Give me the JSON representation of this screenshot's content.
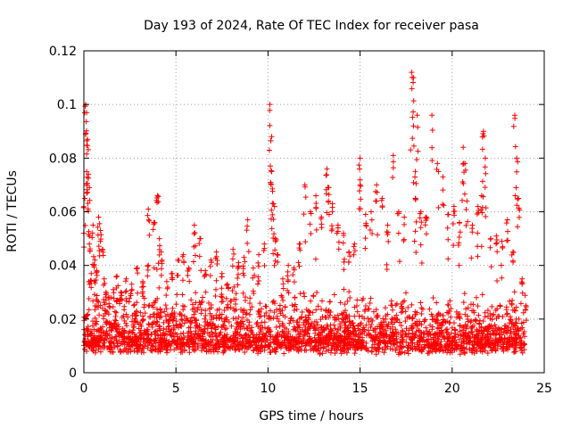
{
  "chart_data": {
    "type": "scatter",
    "title": "Day 193 of 2024, Rate Of TEC Index for receiver pasa",
    "xlabel": "GPS time / hours",
    "ylabel": "ROTI / TECUs",
    "xlim": [
      0,
      25
    ],
    "ylim": [
      0,
      0.12
    ],
    "xticks": [
      0,
      5,
      10,
      15,
      20,
      25
    ],
    "xtick_labels": [
      "0",
      "5",
      "10",
      "15",
      "20",
      "25"
    ],
    "yticks": [
      0,
      0.02,
      0.04,
      0.06,
      0.08,
      0.1,
      0.12
    ],
    "ytick_labels": [
      "0",
      "0.02",
      "0.04",
      "0.06",
      "0.08",
      "0.1",
      "0.12"
    ],
    "grid": true,
    "marker": "+",
    "point_color": "#ff0000",
    "series": [
      {
        "name": "ROTI",
        "x": [
          0.05,
          0.1,
          0.15,
          0.15,
          0.2,
          0.25,
          0.3,
          0.3,
          0.4,
          0.5,
          0.6,
          0.7,
          0.8,
          0.9,
          1.0,
          1.1,
          1.2,
          1.4,
          1.6,
          1.8,
          2.0,
          2.3,
          2.6,
          2.9,
          3.2,
          3.5,
          3.5,
          3.8,
          4.0,
          4.1,
          4.2,
          4.5,
          4.8,
          5.1,
          5.4,
          5.7,
          6.0,
          6.3,
          6.6,
          6.9,
          7.2,
          7.5,
          7.8,
          8.1,
          8.4,
          8.7,
          8.9,
          9.2,
          9.5,
          9.8,
          10.1,
          10.2,
          10.2,
          10.3,
          10.4,
          10.5,
          10.8,
          11.1,
          11.4,
          11.7,
          12.0,
          12.3,
          12.6,
          12.9,
          13.2,
          13.3,
          13.5,
          13.8,
          14.1,
          14.4,
          14.7,
          15.0,
          15.0,
          15.3,
          15.6,
          15.9,
          16.2,
          16.5,
          16.8,
          17.1,
          17.4,
          17.8,
          17.9,
          17.9,
          18.0,
          18.0,
          18.1,
          18.3,
          18.6,
          18.9,
          19.2,
          19.5,
          19.8,
          20.1,
          20.4,
          20.6,
          20.7,
          20.8,
          21.1,
          21.4,
          21.6,
          21.7,
          21.8,
          22.1,
          22.4,
          22.7,
          23.0,
          23.3,
          23.4,
          23.5,
          23.6,
          23.8,
          24.0
        ],
        "y": [
          0.065,
          0.1,
          0.097,
          0.075,
          0.087,
          0.074,
          0.069,
          0.048,
          0.037,
          0.055,
          0.042,
          0.038,
          0.058,
          0.053,
          0.046,
          0.035,
          0.03,
          0.028,
          0.031,
          0.036,
          0.03,
          0.035,
          0.033,
          0.039,
          0.034,
          0.061,
          0.04,
          0.056,
          0.066,
          0.05,
          0.045,
          0.034,
          0.037,
          0.042,
          0.044,
          0.039,
          0.055,
          0.05,
          0.038,
          0.042,
          0.045,
          0.037,
          0.033,
          0.046,
          0.041,
          0.043,
          0.057,
          0.039,
          0.044,
          0.048,
          0.1,
          0.088,
          0.075,
          0.063,
          0.05,
          0.044,
          0.035,
          0.04,
          0.039,
          0.048,
          0.07,
          0.06,
          0.066,
          0.058,
          0.076,
          0.069,
          0.063,
          0.055,
          0.052,
          0.045,
          0.048,
          0.08,
          0.07,
          0.059,
          0.06,
          0.07,
          0.065,
          0.055,
          0.081,
          0.06,
          0.058,
          0.112,
          0.11,
          0.092,
          0.075,
          0.065,
          0.096,
          0.06,
          0.058,
          0.096,
          0.078,
          0.073,
          0.059,
          0.062,
          0.056,
          0.084,
          0.078,
          0.064,
          0.055,
          0.062,
          0.066,
          0.09,
          0.08,
          0.05,
          0.051,
          0.049,
          0.057,
          0.045,
          0.096,
          0.08,
          0.065,
          0.035,
          0.025
        ]
      }
    ],
    "background_band": {
      "y_min": 0.003,
      "y_max": 0.028,
      "x_min": 0,
      "x_max": 24
    }
  }
}
